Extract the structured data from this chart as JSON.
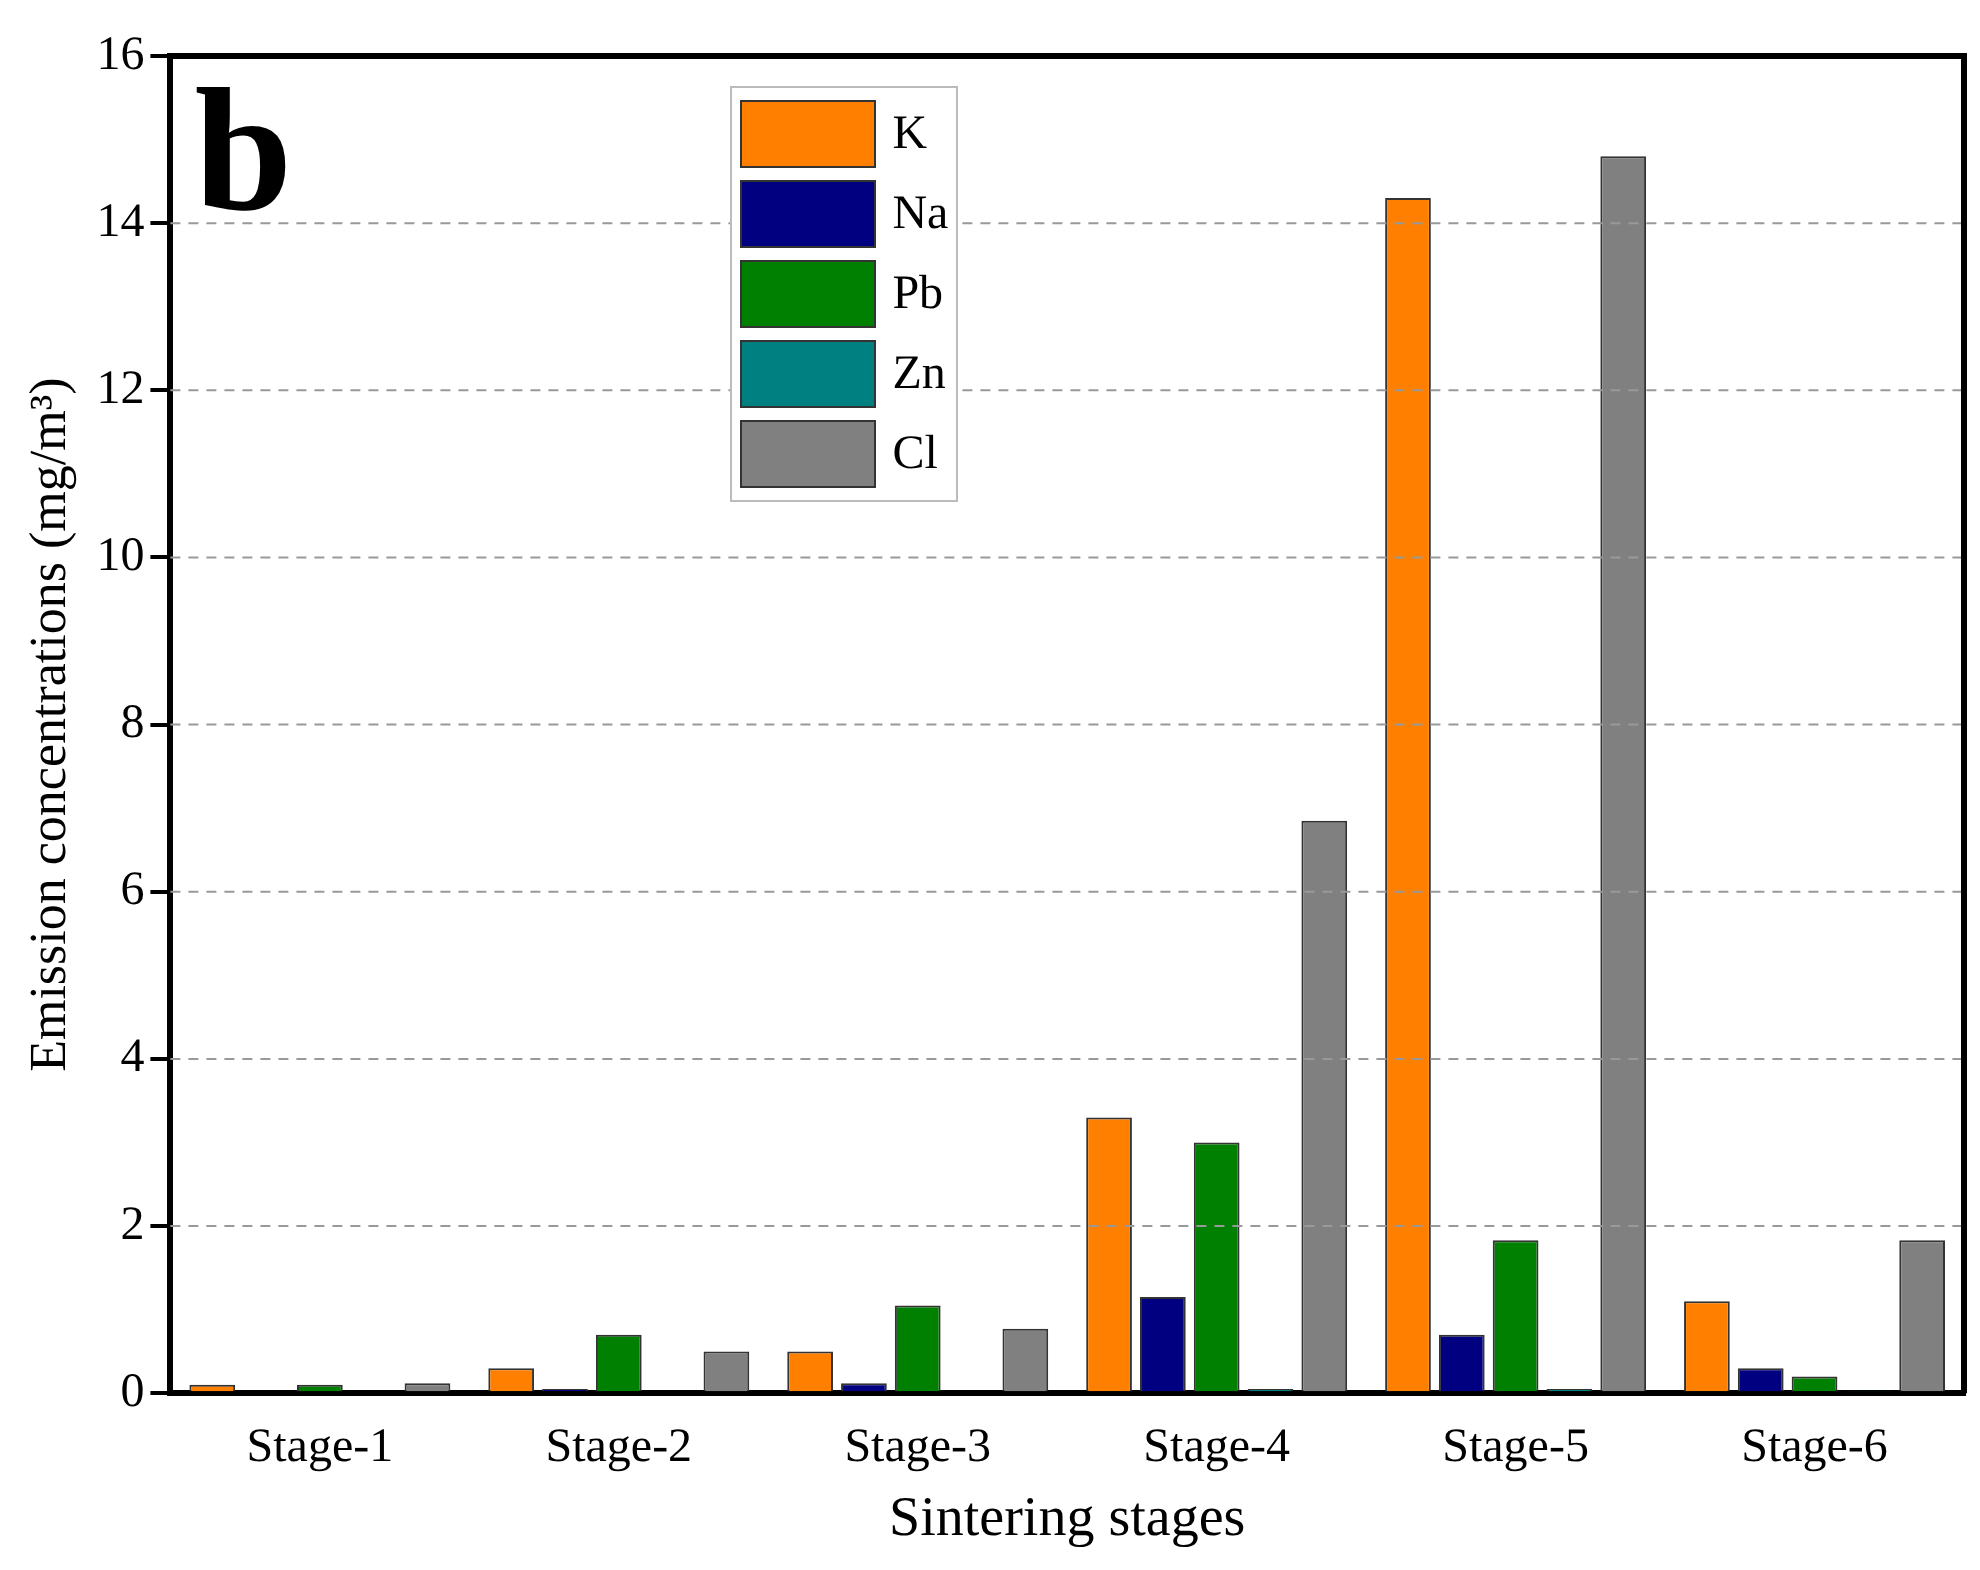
{
  "chart_data": {
    "type": "bar",
    "xlabel": "Sintering stages",
    "ylabel": "Emission concentrations (mg/m³)",
    "annotations": [
      "b"
    ],
    "categories": [
      "Stage-1",
      "Stage-2",
      "Stage-3",
      "Stage-4",
      "Stage-5",
      "Stage-6"
    ],
    "series": [
      {
        "name": "K",
        "color": "#ff8000",
        "values": [
          0.1,
          0.3,
          0.5,
          3.3,
          14.3,
          1.1
        ]
      },
      {
        "name": "Na",
        "color": "#000080",
        "values": [
          0,
          0.05,
          0.12,
          1.15,
          0.7,
          0.3
        ]
      },
      {
        "name": "Pb",
        "color": "#008000",
        "values": [
          0.1,
          0.7,
          1.05,
          3.0,
          1.83,
          0.2
        ]
      },
      {
        "name": "Zn",
        "color": "#008080",
        "values": [
          0,
          0,
          0,
          0.05,
          0.05,
          0.03
        ]
      },
      {
        "name": "Cl",
        "color": "#808080",
        "values": [
          0.12,
          0.5,
          0.77,
          6.85,
          14.8,
          1.83
        ]
      }
    ],
    "ylim": [
      0,
      16
    ],
    "yticks": [
      0,
      2,
      4,
      6,
      8,
      10,
      12,
      14,
      16
    ],
    "grid": "y",
    "legend": "top left"
  }
}
